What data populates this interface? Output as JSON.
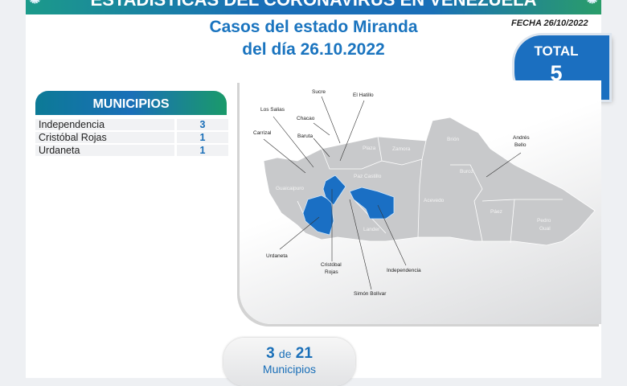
{
  "banner": {
    "title": "ESTADÍSTICAS DEL CORONAVIRUS EN VENEZUELA"
  },
  "heading": {
    "line1": "Casos del estado Miranda",
    "line2": "del día 26.10.2022"
  },
  "fecha": "FECHA 26/10/2022",
  "total": {
    "label": "TOTAL",
    "value": "5"
  },
  "municipios": {
    "header": "MUNICIPIOS",
    "rows": [
      {
        "name": "Independencia",
        "cases": "3"
      },
      {
        "name": "Cristóbal Rojas",
        "cases": "1"
      },
      {
        "name": "Urdaneta",
        "cases": "1"
      }
    ]
  },
  "map": {
    "highlight_color": "#1a6fc4",
    "base_color": "#c8c9cb",
    "callouts": [
      "Sucre",
      "El Hatillo",
      "Los Salias",
      "Chacao",
      "Carrizal",
      "Baruta",
      "Andrés",
      "Bello",
      "Urdaneta",
      "Cristóbal",
      "Rojas",
      "Simón Bolívar",
      "Independencia"
    ],
    "region_labels": [
      "Guaicaipuro",
      "Plaza",
      "Zamora",
      "Paz Castillo",
      "Brión",
      "Buroz",
      "Acevedo",
      "Páez",
      "Pedro",
      "Gual",
      "Lander"
    ]
  },
  "summary": {
    "affected": "3",
    "de": "de",
    "total": "21",
    "unit": "Municipios"
  }
}
